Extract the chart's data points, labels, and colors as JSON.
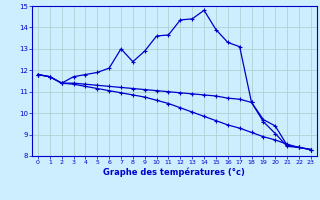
{
  "xlabel": "Graphe des températures (°c)",
  "background_color": "#cceeff",
  "grid_color": "#aacccc",
  "line_color": "#0000cc",
  "xlim": [
    -0.5,
    23.5
  ],
  "ylim": [
    8,
    15
  ],
  "yticks": [
    8,
    9,
    10,
    11,
    12,
    13,
    14,
    15
  ],
  "xticks": [
    0,
    1,
    2,
    3,
    4,
    5,
    6,
    7,
    8,
    9,
    10,
    11,
    12,
    13,
    14,
    15,
    16,
    17,
    18,
    19,
    20,
    21,
    22,
    23
  ],
  "line1_x": [
    0,
    1,
    2,
    3,
    4,
    5,
    6,
    7,
    8,
    9,
    10,
    11,
    12,
    13,
    14,
    15,
    16,
    17,
    18,
    19,
    20,
    21,
    22,
    23
  ],
  "line1_y": [
    11.8,
    11.7,
    11.4,
    11.7,
    11.8,
    11.9,
    12.1,
    13.0,
    12.4,
    12.9,
    13.6,
    13.65,
    14.35,
    14.4,
    14.8,
    13.9,
    13.3,
    13.1,
    10.5,
    9.6,
    9.05,
    8.45,
    8.4,
    8.3
  ],
  "line2_x": [
    0,
    1,
    2,
    3,
    4,
    5,
    6,
    7,
    8,
    9,
    10,
    11,
    12,
    13,
    14,
    15,
    16,
    17,
    18,
    19,
    20,
    21,
    22,
    23
  ],
  "line2_y": [
    11.8,
    11.7,
    11.4,
    11.4,
    11.35,
    11.3,
    11.25,
    11.2,
    11.15,
    11.1,
    11.05,
    11.0,
    10.95,
    10.9,
    10.85,
    10.8,
    10.7,
    10.65,
    10.5,
    9.7,
    9.4,
    8.5,
    8.4,
    8.3
  ],
  "line3_x": [
    0,
    1,
    2,
    3,
    4,
    5,
    6,
    7,
    8,
    9,
    10,
    11,
    12,
    13,
    14,
    15,
    16,
    17,
    18,
    19,
    20,
    21,
    22,
    23
  ],
  "line3_y": [
    11.8,
    11.7,
    11.4,
    11.35,
    11.25,
    11.15,
    11.05,
    10.95,
    10.85,
    10.75,
    10.6,
    10.45,
    10.25,
    10.05,
    9.85,
    9.65,
    9.45,
    9.3,
    9.1,
    8.9,
    8.75,
    8.55,
    8.4,
    8.3
  ]
}
